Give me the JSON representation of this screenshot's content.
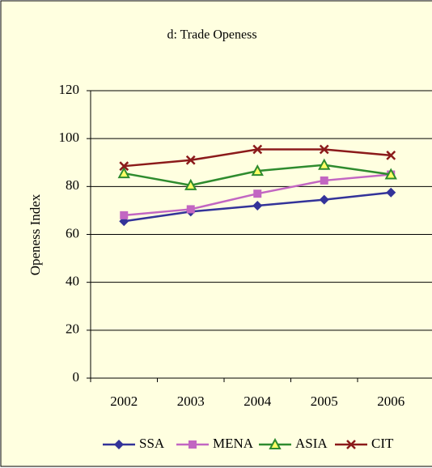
{
  "chart_data": {
    "type": "line",
    "title": "d: Trade Openess",
    "y_label": "Openess Index",
    "categories": [
      "2002",
      "2003",
      "2004",
      "2005",
      "2006"
    ],
    "series": [
      {
        "name": "SSA",
        "color": "#333399",
        "marker": "diamond",
        "values": [
          65.5,
          69.5,
          72,
          74.5,
          77.5
        ]
      },
      {
        "name": "MENA",
        "color": "#c266c2",
        "marker": "square",
        "values": [
          68,
          70.5,
          77,
          82.5,
          85
        ]
      },
      {
        "name": "ASIA",
        "color": "#2e8b2e",
        "marker": "triangle",
        "values": [
          85.5,
          80.5,
          86.5,
          89,
          85
        ]
      },
      {
        "name": "CIT",
        "color": "#8b1a1a",
        "marker": "x",
        "values": [
          88.5,
          91,
          95.5,
          95.5,
          93
        ]
      }
    ],
    "ylim": [
      0,
      120
    ],
    "yticks": [
      0,
      20,
      40,
      60,
      80,
      100,
      120
    ],
    "grid": true,
    "legend": "bottom"
  }
}
